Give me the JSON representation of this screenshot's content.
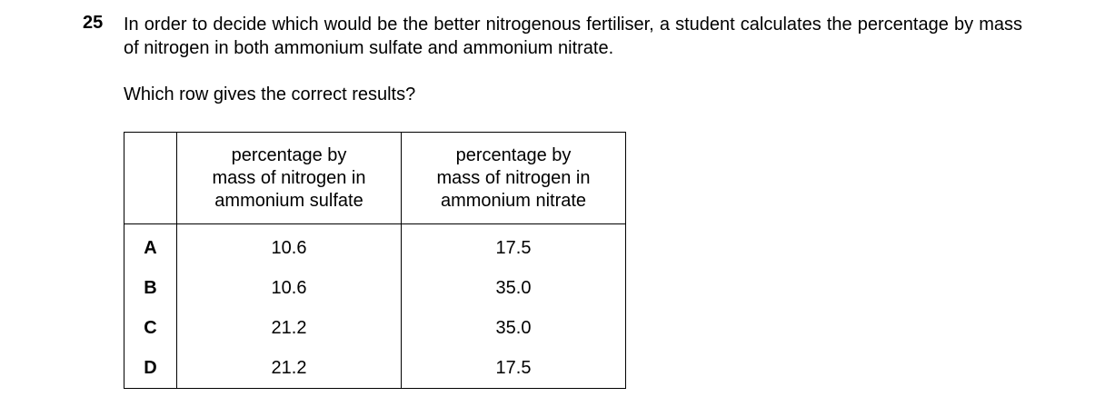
{
  "question": {
    "number": "25",
    "stem": "In order to decide which would be the better nitrogenous fertiliser, a student calculates the percentage by mass of nitrogen in both ammonium sulfate and ammonium nitrate.",
    "prompt": "Which row gives the correct results?"
  },
  "table": {
    "headers": [
      [
        "percentage by",
        "mass of nitrogen in",
        "ammonium sulfate"
      ],
      [
        "percentage by",
        "mass of nitrogen in",
        "ammonium nitrate"
      ]
    ],
    "rows": [
      [
        "A",
        "10.6",
        "17.5"
      ],
      [
        "B",
        "10.6",
        "35.0"
      ],
      [
        "C",
        "21.2",
        "35.0"
      ],
      [
        "D",
        "21.2",
        "17.5"
      ]
    ]
  }
}
